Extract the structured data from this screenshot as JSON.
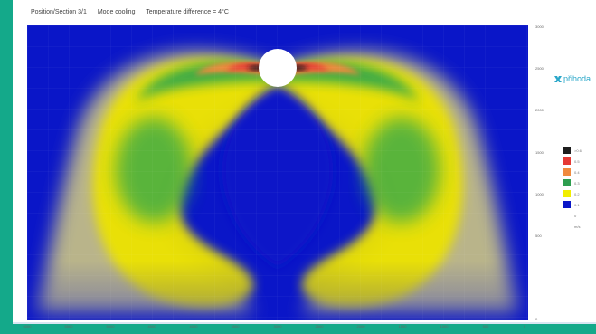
{
  "header": {
    "position": "Position/Section 3/1",
    "mode": "Mode cooling",
    "temperature": "Temperature difference = 4°C"
  },
  "y_axis": {
    "ticks": [
      "3000",
      "2500",
      "2000",
      "1500",
      "1000",
      "500",
      "0"
    ]
  },
  "x_axis": {
    "ticks": [
      "6000",
      "5500",
      "5000",
      "4500",
      "4000",
      "3500",
      "3000",
      "2500",
      "2000",
      "1500",
      "1000",
      "500",
      "0"
    ]
  },
  "logo": {
    "text": "přihoda",
    "icon": "logo-icon"
  },
  "legend": [
    {
      "color": "#1e1e1e",
      "label": ">0.6"
    },
    {
      "color": "#e53935",
      "label": "0.5"
    },
    {
      "color": "#f08a3e",
      "label": "0.4"
    },
    {
      "color": "#2e9e4f",
      "label": "0.3"
    },
    {
      "color": "#f1ee00",
      "label": "0.2"
    },
    {
      "color": "#0a16c8",
      "label": "0.1"
    },
    {
      "color": "#ffffff",
      "label": "0"
    },
    {
      "color": "#ffffff",
      "label": "m/s"
    }
  ],
  "colors": {
    "background": "#0a16c8",
    "accent": "#14a98a"
  }
}
